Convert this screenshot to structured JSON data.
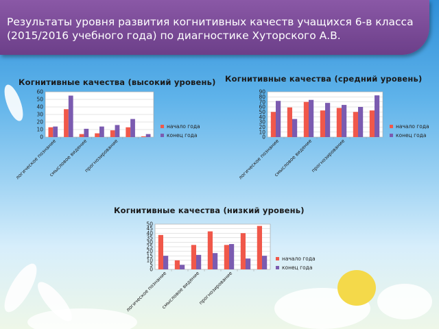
{
  "slide": {
    "title": "Результаты уровня развития  когнитивных качеств учащихся 6-в класса (2015/2016 учебного года) по диагностике Хуторского А.В."
  },
  "colors": {
    "start": "#f0584a",
    "end": "#7b5bb0",
    "banner": "#7a4a98"
  },
  "legend": {
    "start": "начало года",
    "end": "конец года"
  },
  "chart_data": [
    {
      "type": "bar",
      "title": "Когнитивные качества (высокий уровень)",
      "categories": [
        "",
        "",
        "",
        "",
        "",
        "",
        ""
      ],
      "category_labels": [
        {
          "index": 0,
          "text": "логическое познание"
        },
        {
          "index": 2,
          "text": "смысловое видение"
        },
        {
          "index": 4,
          "text": "прогнозирование"
        }
      ],
      "ylim": [
        0,
        60
      ],
      "ystep": 10,
      "grid": true,
      "legend_placement": "right",
      "series": [
        {
          "name": "начало года",
          "values": [
            13,
            37,
            4,
            5,
            9,
            13,
            1
          ]
        },
        {
          "name": "конец года",
          "values": [
            14,
            55,
            11,
            14,
            16,
            24,
            4
          ]
        }
      ]
    },
    {
      "type": "bar",
      "title": "Когнитивные качества (средний уровень)",
      "categories": [
        "",
        "",
        "",
        "",
        "",
        "",
        ""
      ],
      "category_labels": [
        {
          "index": 0,
          "text": "логическое познание"
        },
        {
          "index": 2,
          "text": "смысловое видение"
        },
        {
          "index": 4,
          "text": "прогнозирование"
        }
      ],
      "ylim": [
        0,
        90
      ],
      "ystep": 10,
      "grid": true,
      "legend_placement": "right",
      "series": [
        {
          "name": "начало года",
          "values": [
            50,
            59,
            70,
            53,
            58,
            50,
            53
          ]
        },
        {
          "name": "конец года",
          "values": [
            72,
            36,
            74,
            68,
            64,
            60,
            83
          ]
        }
      ]
    },
    {
      "type": "bar",
      "title": "Когнитивные качества (низкий уровень)",
      "categories": [
        "",
        "",
        "",
        "",
        "",
        "",
        ""
      ],
      "category_labels": [
        {
          "index": 0,
          "text": "логическое познание"
        },
        {
          "index": 2,
          "text": "смысловое видение"
        },
        {
          "index": 4,
          "text": "прогнозирование"
        }
      ],
      "ylim": [
        0,
        50
      ],
      "ystep": 5,
      "grid": true,
      "legend_placement": "right",
      "series": [
        {
          "name": "начало года",
          "values": [
            38,
            10,
            27,
            42,
            27,
            40,
            48
          ]
        },
        {
          "name": "конец года",
          "values": [
            15,
            5,
            16,
            18,
            28,
            12,
            15
          ]
        }
      ]
    }
  ]
}
